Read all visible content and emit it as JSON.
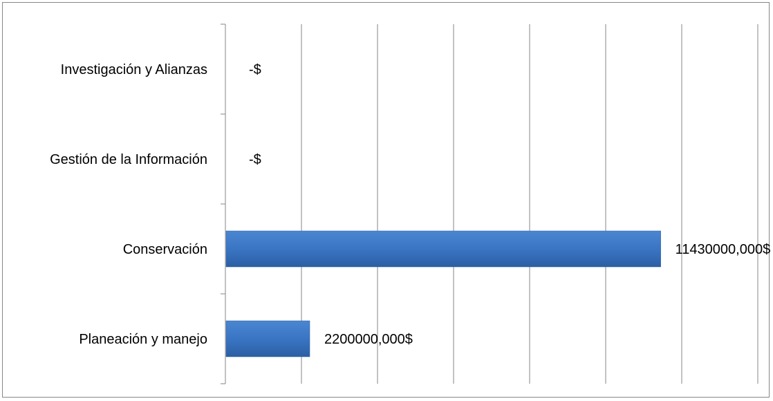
{
  "chart_data": {
    "type": "bar",
    "orientation": "horizontal",
    "categories": [
      "Planeación y manejo",
      "Conservación",
      "Gestión de la Información",
      "Investigación y Alianzas"
    ],
    "values": [
      2200000,
      11430000,
      0,
      0
    ],
    "data_labels": [
      "2200000,000$",
      "11430000,000$",
      "-$",
      "-$"
    ],
    "xlim": [
      0,
      14000000
    ],
    "grid": "vertical",
    "legend": "none",
    "bar_color": "#3a75c4",
    "bar_color_dark": "#2c5fa3",
    "grid_color": "#868686"
  }
}
